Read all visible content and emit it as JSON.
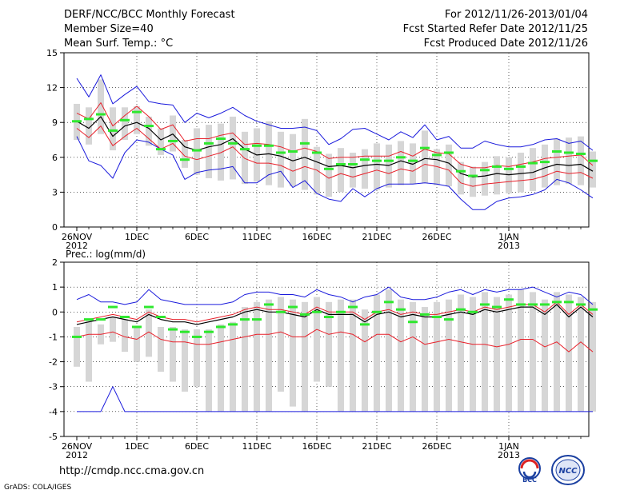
{
  "header": {
    "title": "DERF/NCC/BCC Monthly Forecast",
    "member_size": "Member Size=40",
    "variable": "Mean Surf. Temp.: °C",
    "period": "For 2012/11/26-2013/01/04",
    "started": "Fcst Started Refer Date 2012/11/25",
    "produced": "Fcst Produced Date 2012/11/26"
  },
  "footer": {
    "url": "http://cmdp.ncc.cma.gov.cn",
    "credit": "GrADS: COLA/IGES",
    "logo_bcc": "BCC",
    "logo_ncc": "NCC"
  },
  "colors": {
    "ensemble_mean": "#000000",
    "spread": "#e8202a",
    "extremes": "#1a1adc",
    "box": "#d6d6d6",
    "climatology": "#2ee82e"
  },
  "chart_data": [
    {
      "type": "box-line",
      "title": "Mean Surf. Temp.: °C",
      "ylim": [
        0,
        15
      ],
      "yticks": [
        "0",
        "3",
        "6",
        "9",
        "12",
        "15"
      ],
      "xticks": [
        {
          "day": 0,
          "label": "26NOV",
          "label2": "2012"
        },
        {
          "day": 5,
          "label": "1DEC"
        },
        {
          "day": 10,
          "label": "6DEC"
        },
        {
          "day": 15,
          "label": "11DEC"
        },
        {
          "day": 20,
          "label": "16DEC"
        },
        {
          "day": 25,
          "label": "21DEC"
        },
        {
          "day": 30,
          "label": "26DEC"
        },
        {
          "day": 36,
          "label": "1JAN",
          "label2": "2013"
        }
      ],
      "ensemble_mean": [
        9.1,
        8.5,
        9.5,
        7.8,
        8.7,
        9.0,
        8.5,
        7.5,
        8.0,
        6.9,
        6.6,
        6.9,
        7.1,
        7.6,
        6.7,
        6.2,
        6.3,
        6.1,
        5.7,
        6.0,
        5.6,
        5.2,
        5.3,
        5.1,
        5.3,
        5.4,
        5.3,
        5.7,
        5.4,
        5.9,
        5.8,
        5.5,
        4.6,
        4.3,
        4.4,
        4.6,
        4.5,
        4.6,
        4.7,
        5.1,
        5.4,
        5.3,
        5.4,
        4.8
      ],
      "upper_spread": [
        9.8,
        9.3,
        10.7,
        8.7,
        9.6,
        10.4,
        9.5,
        8.4,
        8.8,
        7.4,
        7.6,
        7.6,
        7.9,
        8.1,
        7.1,
        7.2,
        7.1,
        6.9,
        6.5,
        6.8,
        6.5,
        5.9,
        6.0,
        6.0,
        6.1,
        6.1,
        6.1,
        6.5,
        6.1,
        6.7,
        6.4,
        6.3,
        5.4,
        5.1,
        5.1,
        5.3,
        5.2,
        5.4,
        5.6,
        5.9,
        6.0,
        6.1,
        6.2,
        5.3
      ],
      "lower_spread": [
        8.5,
        7.7,
        8.7,
        7.0,
        7.8,
        8.5,
        7.6,
        6.7,
        7.2,
        6.1,
        5.8,
        6.1,
        6.4,
        6.9,
        5.9,
        5.5,
        5.5,
        5.3,
        4.8,
        5.2,
        4.9,
        4.2,
        4.6,
        4.3,
        4.6,
        4.9,
        4.6,
        5.0,
        4.8,
        5.4,
        5.2,
        4.9,
        3.8,
        3.5,
        3.7,
        3.8,
        3.9,
        4.0,
        4.1,
        4.4,
        4.8,
        4.6,
        4.7,
        4.2
      ],
      "max": [
        12.8,
        11.2,
        13.1,
        10.6,
        11.4,
        12.1,
        10.8,
        10.6,
        10.5,
        9.0,
        9.8,
        9.4,
        9.8,
        10.3,
        9.6,
        9.1,
        8.8,
        8.5,
        8.5,
        8.6,
        8.3,
        7.1,
        7.6,
        8.4,
        8.5,
        8.0,
        7.5,
        8.2,
        7.7,
        8.8,
        7.5,
        7.8,
        6.8,
        6.8,
        7.4,
        7.1,
        6.9,
        6.9,
        7.1,
        7.5,
        7.6,
        7.2,
        7.4,
        6.6
      ],
      "min": [
        7.8,
        5.7,
        5.3,
        4.2,
        6.4,
        7.5,
        7.3,
        6.7,
        6.2,
        4.1,
        4.7,
        4.9,
        5.0,
        5.2,
        3.8,
        3.8,
        4.5,
        4.8,
        3.4,
        4.0,
        2.9,
        2.4,
        2.2,
        3.3,
        2.6,
        3.3,
        3.7,
        3.7,
        3.7,
        3.8,
        3.7,
        3.5,
        2.4,
        1.5,
        1.5,
        2.2,
        2.5,
        2.6,
        2.8,
        3.2,
        4.1,
        3.8,
        3.2,
        2.5
      ],
      "box_high": [
        10.6,
        10.3,
        12.7,
        10.3,
        10.3,
        10.4,
        9.5,
        8.5,
        9.6,
        7.5,
        8.5,
        8.8,
        8.9,
        9.5,
        8.2,
        8.5,
        9.1,
        8.2,
        8.0,
        9.3,
        6.9,
        6.3,
        6.8,
        6.4,
        6.7,
        7.2,
        7.1,
        7.4,
        7.2,
        8.3,
        6.7,
        7.1,
        5.6,
        5.2,
        5.6,
        6.1,
        6.0,
        6.4,
        6.8,
        7.1,
        7.6,
        7.7,
        7.8,
        6.5
      ],
      "box_low": [
        7.5,
        7.1,
        8.0,
        6.6,
        7.5,
        8.0,
        7.0,
        6.2,
        6.5,
        5.1,
        4.5,
        4.2,
        4.0,
        4.1,
        3.7,
        3.9,
        3.6,
        3.4,
        3.5,
        3.2,
        2.8,
        2.6,
        3.0,
        3.4,
        3.3,
        3.2,
        3.4,
        3.6,
        3.7,
        3.8,
        3.6,
        3.5,
        2.8,
        2.6,
        2.7,
        2.8,
        2.9,
        3.0,
        3.1,
        3.4,
        3.6,
        3.7,
        3.6,
        3.4
      ],
      "climatology": [
        9.1,
        9.3,
        9.7,
        8.3,
        9.2,
        9.9,
        8.7,
        6.7,
        7.4,
        5.8,
        6.6,
        7.2,
        7.6,
        7.2,
        6.7,
        7.0,
        7.0,
        6.4,
        6.5,
        7.2,
        6.4,
        5.0,
        5.4,
        5.4,
        5.8,
        5.7,
        5.7,
        6.0,
        5.7,
        6.8,
        6.2,
        6.4,
        4.8,
        4.4,
        4.9,
        5.2,
        5.0,
        5.2,
        5.5,
        5.6,
        6.5,
        6.4,
        6.3,
        5.7
      ]
    },
    {
      "type": "box-line",
      "title": "Prec.: log(mm/d)",
      "ylim": [
        -5,
        2
      ],
      "yticks": [
        "-5",
        "-4",
        "-3",
        "-2",
        "-1",
        "0",
        "1",
        "2"
      ],
      "xticks": [
        {
          "day": 0,
          "label": "26NOV",
          "label2": "2012"
        },
        {
          "day": 5,
          "label": "1DEC"
        },
        {
          "day": 10,
          "label": "6DEC"
        },
        {
          "day": 15,
          "label": "11DEC"
        },
        {
          "day": 20,
          "label": "16DEC"
        },
        {
          "day": 25,
          "label": "21DEC"
        },
        {
          "day": 30,
          "label": "26DEC"
        },
        {
          "day": 36,
          "label": "1JAN",
          "label2": "2013"
        }
      ],
      "ensemble_mean": [
        -0.5,
        -0.4,
        -0.3,
        -0.2,
        -0.3,
        -0.4,
        -0.1,
        -0.3,
        -0.4,
        -0.4,
        -0.5,
        -0.4,
        -0.3,
        -0.2,
        0.0,
        0.1,
        0.0,
        0.0,
        -0.1,
        -0.2,
        0.1,
        -0.1,
        -0.1,
        -0.1,
        -0.4,
        -0.1,
        0.0,
        -0.2,
        -0.1,
        -0.2,
        -0.2,
        -0.1,
        0.0,
        -0.1,
        0.1,
        0.0,
        0.1,
        0.2,
        0.2,
        -0.1,
        0.3,
        -0.2,
        0.2,
        -0.2
      ],
      "upper_spread": [
        -0.4,
        -0.3,
        -0.2,
        -0.1,
        -0.2,
        -0.3,
        0.0,
        -0.2,
        -0.3,
        -0.3,
        -0.4,
        -0.3,
        -0.2,
        -0.1,
        0.1,
        0.2,
        0.1,
        0.1,
        0.0,
        -0.1,
        0.2,
        0.0,
        0.0,
        0.0,
        -0.3,
        0.0,
        0.1,
        -0.1,
        0.0,
        -0.1,
        -0.1,
        0.0,
        0.1,
        0.0,
        0.2,
        0.1,
        0.2,
        0.3,
        0.3,
        0.0,
        0.4,
        -0.1,
        0.3,
        -0.1
      ],
      "lower_spread": [
        -0.6,
        -0.5,
        -0.4,
        -0.3,
        -0.4,
        -0.5,
        -0.2,
        -0.4,
        -0.5,
        -0.5,
        -0.6,
        -0.5,
        -0.4,
        -0.3,
        -0.1,
        0.0,
        -0.1,
        -0.1,
        -0.2,
        -0.3,
        0.0,
        -0.2,
        -0.2,
        -0.2,
        -0.5,
        -0.2,
        -0.1,
        -0.3,
        -0.2,
        -0.3,
        -0.3,
        -0.2,
        -0.1,
        -0.2,
        0.0,
        -0.1,
        0.0,
        0.1,
        0.1,
        -0.2,
        0.2,
        -0.3,
        0.1,
        -0.3
      ],
      "max": [
        0.5,
        0.7,
        0.4,
        0.4,
        0.3,
        0.4,
        0.9,
        0.5,
        0.4,
        0.3,
        0.3,
        0.3,
        0.3,
        0.4,
        0.7,
        0.8,
        0.8,
        0.7,
        0.7,
        0.6,
        0.9,
        0.7,
        0.6,
        0.4,
        0.6,
        0.7,
        1.0,
        0.6,
        0.5,
        0.5,
        0.6,
        0.8,
        0.9,
        0.7,
        0.9,
        0.8,
        0.9,
        0.9,
        1.0,
        0.8,
        0.6,
        0.8,
        0.7,
        0.3
      ],
      "min": [
        -4,
        -4,
        -4,
        -3,
        -4,
        -4,
        -4,
        -4,
        -4,
        -4,
        -4,
        -4,
        -4,
        -4,
        -4,
        -4,
        -4,
        -4,
        -4,
        -4,
        -4,
        -4,
        -4,
        -4,
        -4,
        -4,
        -4,
        -4,
        -4,
        -4,
        -4,
        -4,
        -4,
        -4,
        -4,
        -4,
        -4,
        -4,
        -4,
        -4,
        -4,
        -4,
        -4,
        -4
      ],
      "lower_line": [
        -1.0,
        -0.9,
        -0.9,
        -0.8,
        -1.0,
        -1.1,
        -0.8,
        -1.1,
        -1.2,
        -1.2,
        -1.3,
        -1.3,
        -1.2,
        -1.1,
        -1.0,
        -0.9,
        -0.9,
        -0.8,
        -1.0,
        -1.0,
        -0.7,
        -0.9,
        -0.8,
        -0.9,
        -1.2,
        -0.9,
        -0.9,
        -1.2,
        -1.0,
        -1.3,
        -1.2,
        -1.1,
        -1.2,
        -1.3,
        -1.3,
        -1.4,
        -1.3,
        -1.1,
        -1.1,
        -1.4,
        -1.2,
        -1.6,
        -1.2,
        -1.6
      ],
      "box_high": [
        -0.6,
        -0.3,
        -0.5,
        -0.2,
        -0.3,
        -0.6,
        0.1,
        -0.6,
        -0.6,
        -0.7,
        -0.7,
        -0.7,
        -0.5,
        -0.4,
        0.2,
        0.4,
        0.5,
        0.6,
        0.5,
        0.4,
        0.6,
        0.4,
        0.5,
        0.5,
        0.1,
        0.7,
        0.9,
        0.5,
        0.4,
        0.2,
        0.4,
        0.5,
        0.7,
        0.6,
        0.8,
        0.6,
        0.7,
        0.9,
        0.8,
        0.5,
        0.8,
        0.7,
        0.6,
        0.4
      ],
      "box_low": [
        -2.2,
        -2.8,
        -1.3,
        -1.2,
        -1.6,
        -2.0,
        -1.8,
        -2.4,
        -2.8,
        -3.2,
        -3.0,
        -4.0,
        -4.0,
        -4.0,
        -4.0,
        -4.0,
        -4.0,
        -3.2,
        -3.8,
        -4.0,
        -2.8,
        -3.0,
        -4.0,
        -4.0,
        -4.0,
        -4.0,
        -4.0,
        -4.0,
        -4.0,
        -4.0,
        -4.0,
        -4.0,
        -4.0,
        -4.0,
        -4.0,
        -4.0,
        -4.0,
        -4.0,
        -4.0,
        -4.0,
        -4.0,
        -4.0,
        -4.0,
        -4.0
      ],
      "climatology": [
        -1.0,
        -0.3,
        -0.3,
        0.2,
        -0.2,
        -0.6,
        0.2,
        -0.2,
        -0.7,
        -0.8,
        -1.0,
        -0.8,
        -0.6,
        -0.5,
        -0.3,
        -0.3,
        0.3,
        0.0,
        0.2,
        -0.1,
        0.0,
        -0.2,
        0.0,
        0.2,
        -0.5,
        0.0,
        0.4,
        0.1,
        -0.4,
        -0.1,
        -0.2,
        -0.3,
        0.1,
        0.0,
        0.3,
        0.2,
        0.5,
        0.3,
        0.3,
        0.3,
        0.4,
        0.4,
        0.3,
        0.1
      ]
    }
  ]
}
